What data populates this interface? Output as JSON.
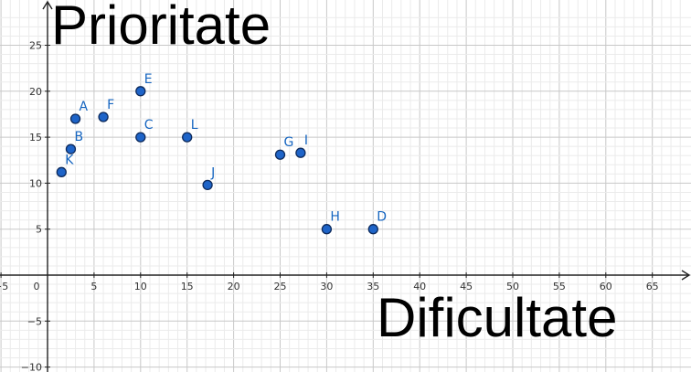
{
  "chart_data": {
    "type": "scatter",
    "title": "",
    "xlabel": "Dificultate",
    "ylabel": "Prioritate",
    "xlim": [
      -5,
      68
    ],
    "ylim": [
      -10,
      28
    ],
    "x_ticks": [
      -5,
      5,
      10,
      15,
      20,
      25,
      30,
      35,
      40,
      45,
      50,
      55,
      60,
      65
    ],
    "y_ticks": [
      -10,
      -5,
      5,
      10,
      15,
      20,
      25
    ],
    "origin_label": "0",
    "grid": true,
    "point_color": "#1e64c8",
    "label_color": "#1565c0",
    "points": [
      {
        "label": "A",
        "x": 3,
        "y": 17
      },
      {
        "label": "B",
        "x": 2.5,
        "y": 13.7
      },
      {
        "label": "C",
        "x": 10,
        "y": 15
      },
      {
        "label": "D",
        "x": 35,
        "y": 5
      },
      {
        "label": "E",
        "x": 10,
        "y": 20
      },
      {
        "label": "F",
        "x": 6,
        "y": 17.2
      },
      {
        "label": "G",
        "x": 25,
        "y": 13.1
      },
      {
        "label": "H",
        "x": 30,
        "y": 5
      },
      {
        "label": "I",
        "x": 27.2,
        "y": 13.3
      },
      {
        "label": "J",
        "x": 17.2,
        "y": 9.8
      },
      {
        "label": "K",
        "x": 1.5,
        "y": 11.2
      },
      {
        "label": "L",
        "x": 15,
        "y": 15
      }
    ]
  }
}
